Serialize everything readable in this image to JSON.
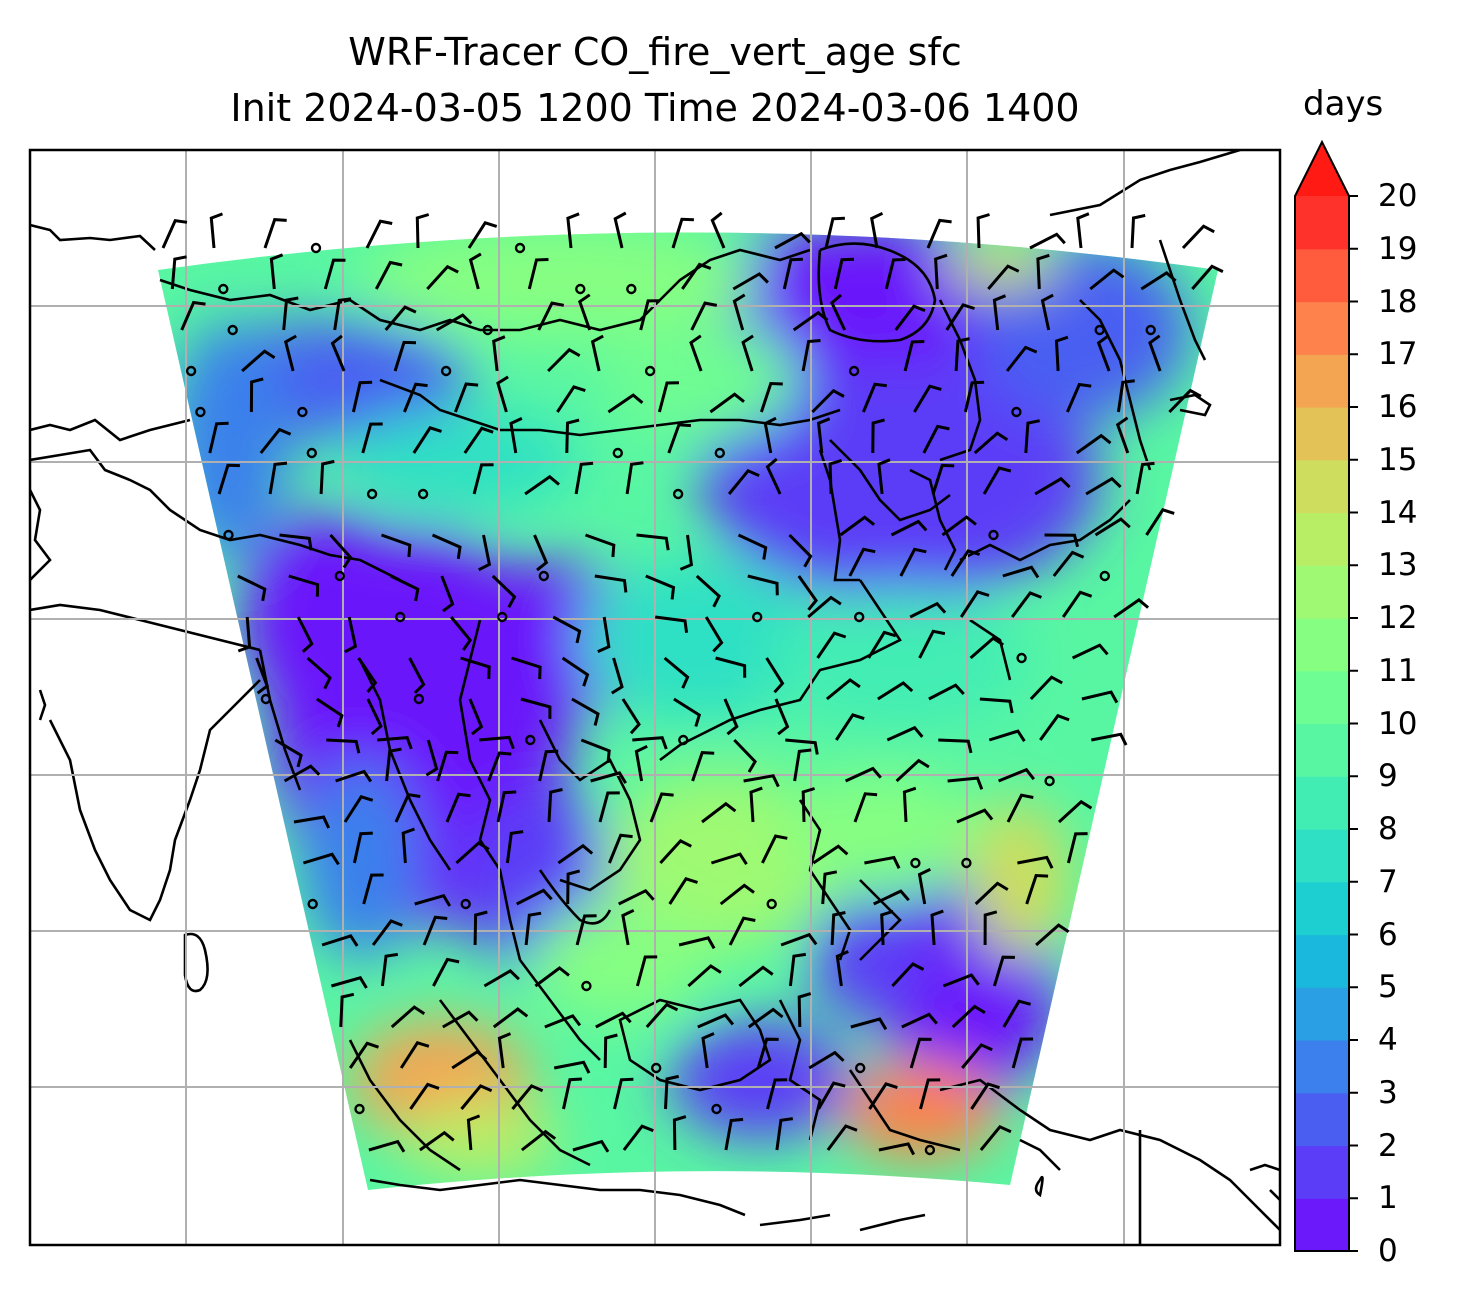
{
  "title": {
    "line1": "WRF-Tracer CO_fire_vert_age sfc",
    "line2": "Init 2024-03-05 1200 Time 2024-03-06 1400"
  },
  "colorbar": {
    "unit": "days",
    "ticks": [
      "0",
      "1",
      "2",
      "3",
      "4",
      "5",
      "6",
      "7",
      "8",
      "9",
      "10",
      "11",
      "12",
      "13",
      "14",
      "15",
      "16",
      "17",
      "18",
      "19",
      "20"
    ],
    "extend": "max",
    "colors": [
      "#6b18fb",
      "#5b3cf7",
      "#4a5ff2",
      "#3b80ec",
      "#2a9fe4",
      "#1ab8dc",
      "#1ecfd2",
      "#2fe0c4",
      "#42edb4",
      "#58f6a3",
      "#6efd92",
      "#86fe82",
      "#9ff972",
      "#b8ee66",
      "#cedd5d",
      "#e3c358",
      "#f4a552",
      "#fd824b",
      "#ff5c3e",
      "#ff322b",
      "#ff1a14"
    ]
  },
  "map": {
    "gridlines": true,
    "coastlines": true,
    "wind_barbs": true,
    "colormap": "rainbow"
  }
}
